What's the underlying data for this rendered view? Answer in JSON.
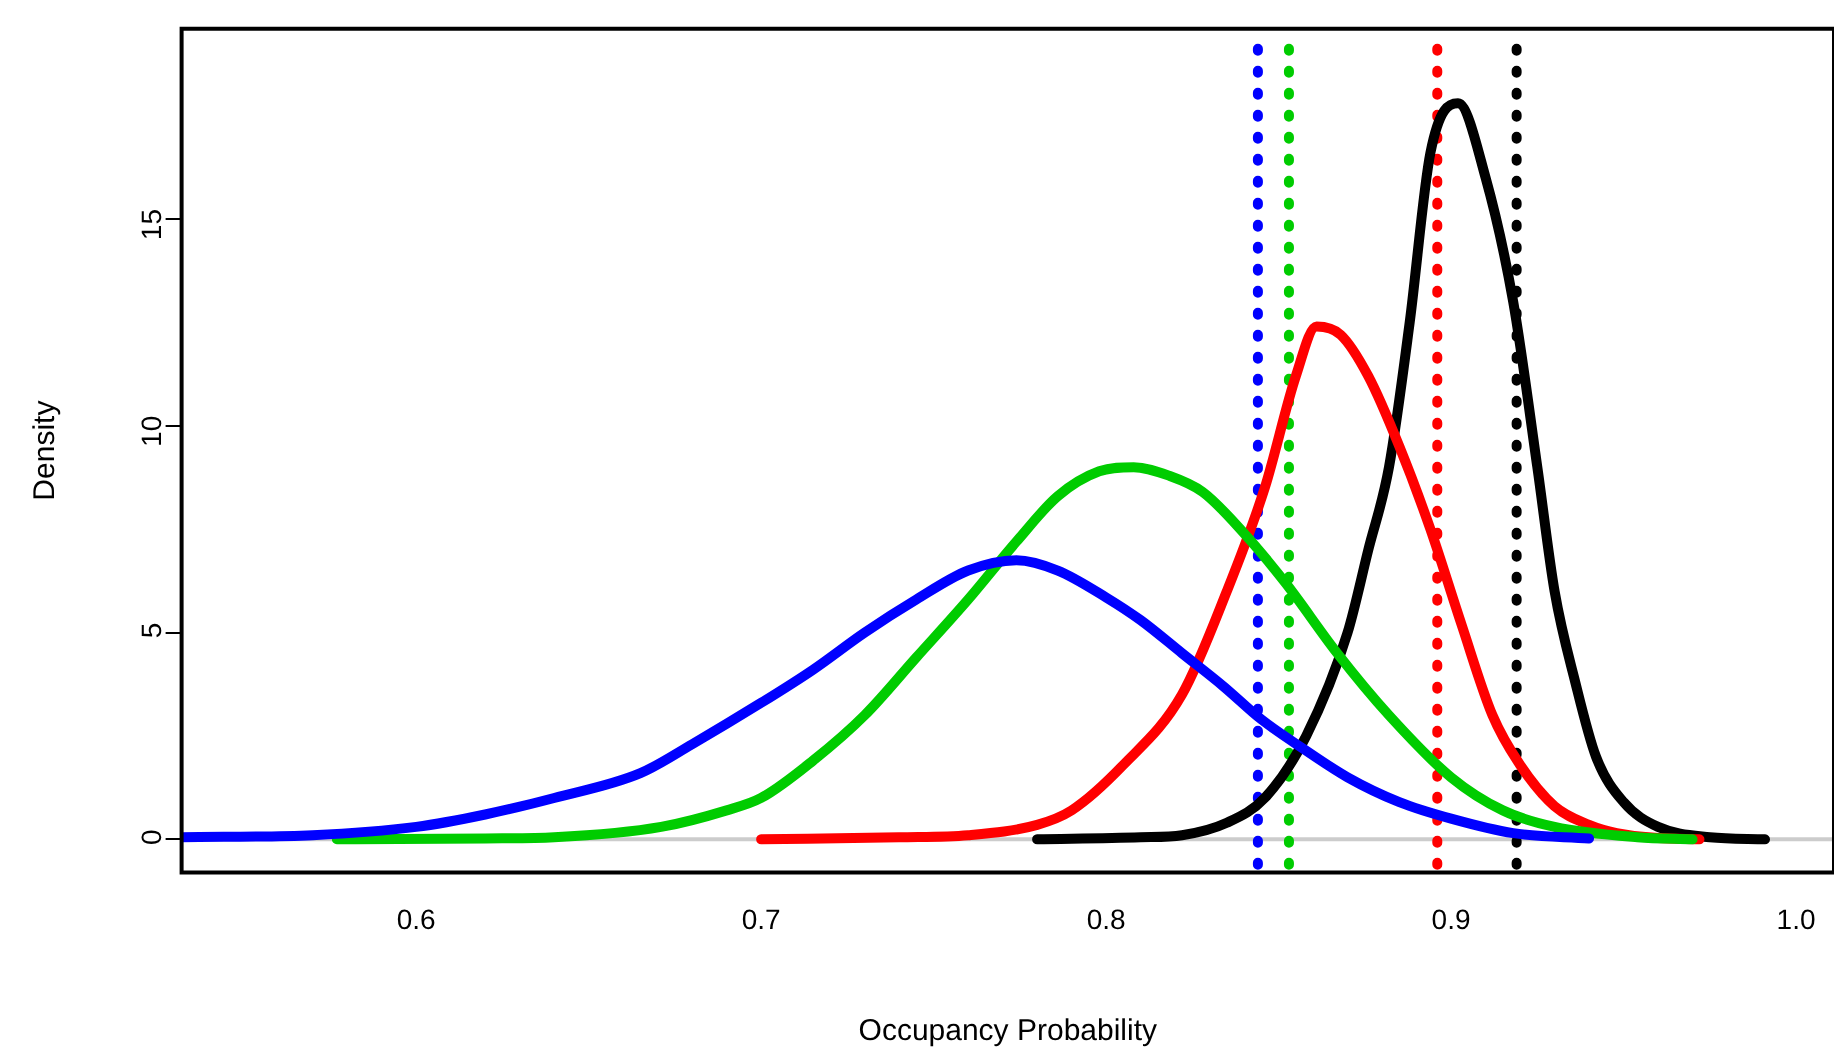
{
  "chart_data": {
    "type": "line",
    "xlabel": "Occupancy Probability",
    "ylabel": "Density",
    "xlim": [
      0.532,
      1.011
    ],
    "ylim": [
      -0.8,
      19.6
    ],
    "xticks": [
      0.6,
      0.7,
      0.8,
      0.9,
      {
        "value": 1.0,
        "label": "1.0"
      }
    ],
    "yticks": [
      0,
      5,
      10,
      15
    ],
    "grid": false,
    "legend": false,
    "marker": "none",
    "line_style": "solid",
    "series": [
      {
        "color": "#0000ff",
        "x": [
          0.532,
          0.57,
          0.6,
          0.62,
          0.64,
          0.665,
          0.68,
          0.7,
          0.715,
          0.73,
          0.745,
          0.76,
          0.774,
          0.786,
          0.8,
          0.81,
          0.822,
          0.834,
          0.845,
          0.857,
          0.87,
          0.885,
          0.9,
          0.918,
          0.94
        ],
        "values": [
          0.05,
          0.1,
          0.3,
          0.6,
          1.0,
          1.6,
          2.3,
          3.3,
          4.1,
          5.0,
          5.8,
          6.5,
          6.75,
          6.5,
          5.85,
          5.3,
          4.5,
          3.7,
          2.9,
          2.2,
          1.5,
          0.9,
          0.5,
          0.15,
          0.02
        ]
      },
      {
        "color": "#00cc00",
        "x": [
          0.577,
          0.62,
          0.64,
          0.671,
          0.69,
          0.7,
          0.715,
          0.73,
          0.745,
          0.76,
          0.774,
          0.786,
          0.798,
          0.808,
          0.818,
          0.828,
          0.84,
          0.852,
          0.867,
          0.882,
          0.9,
          0.915,
          0.93,
          0.954,
          0.97
        ],
        "values": [
          0,
          0.02,
          0.05,
          0.3,
          0.7,
          1.0,
          1.9,
          3.0,
          4.4,
          5.8,
          7.2,
          8.3,
          8.9,
          9.0,
          8.8,
          8.4,
          7.4,
          6.2,
          4.5,
          3.0,
          1.5,
          0.7,
          0.3,
          0.05,
          0
        ]
      },
      {
        "color": "#ff0000",
        "x": [
          0.7,
          0.74,
          0.76,
          0.78,
          0.79,
          0.805,
          0.822,
          0.835,
          0.846,
          0.855,
          0.861,
          0.868,
          0.876,
          0.885,
          0.894,
          0.903,
          0.912,
          0.92,
          0.93,
          0.94,
          0.948,
          0.96,
          0.972
        ],
        "values": [
          0,
          0.05,
          0.1,
          0.35,
          0.7,
          1.8,
          3.5,
          6.0,
          8.5,
          11.2,
          12.4,
          12.2,
          11.2,
          9.5,
          7.5,
          5.2,
          3.0,
          1.8,
          0.8,
          0.35,
          0.15,
          0.03,
          0
        ]
      },
      {
        "color": "#000000",
        "x": [
          0.78,
          0.81,
          0.822,
          0.835,
          0.846,
          0.858,
          0.87,
          0.876,
          0.882,
          0.888,
          0.894,
          0.902,
          0.91,
          0.918,
          0.925,
          0.93,
          0.936,
          0.942,
          0.95,
          0.96,
          0.975,
          0.991
        ],
        "values": [
          0,
          0.05,
          0.1,
          0.4,
          1.0,
          2.5,
          5.0,
          7.0,
          9.0,
          12.5,
          16.6,
          17.8,
          16.0,
          13.0,
          9.0,
          6.0,
          3.8,
          2.0,
          0.9,
          0.3,
          0.05,
          0
        ]
      }
    ],
    "ref_lines": [
      {
        "axis": "y",
        "value": 0,
        "color": "#cccccc",
        "line_style": "solid"
      },
      {
        "axis": "x",
        "value": 0.844,
        "color": "#0000ff",
        "line_style": "dotted"
      },
      {
        "axis": "x",
        "value": 0.853,
        "color": "#00cc00",
        "line_style": "dotted"
      },
      {
        "axis": "x",
        "value": 0.896,
        "color": "#ff0000",
        "line_style": "dotted"
      },
      {
        "axis": "x",
        "value": 0.919,
        "color": "#000000",
        "line_style": "dotted"
      }
    ]
  }
}
